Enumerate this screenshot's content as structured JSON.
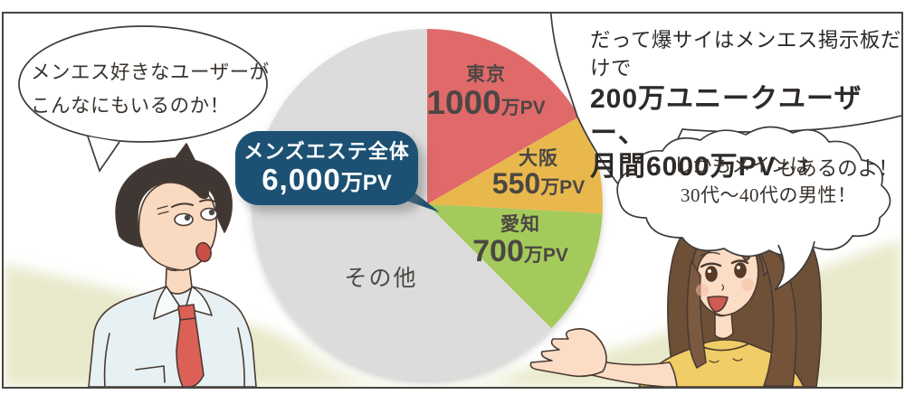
{
  "scene": {
    "left_bubble": {
      "lines": [
        "メンエス好きなユーザーが",
        "こんなにもいるのか！"
      ]
    },
    "top_right_bubble": {
      "line1": "だって爆サイはメンエス掲示板だけで",
      "line2": "200万ユニークユーザー、",
      "line3_bold": "月間6000万PV",
      "line3_rest": "もあるのよ！"
    },
    "bottom_right_bubble": {
      "lines": [
        "しかもメインは",
        "30代～40代の男性！"
      ]
    }
  },
  "chart_data": {
    "type": "pie",
    "title": "メンズエステ全体 6,000万PV",
    "direction": "clockwise",
    "start_angle_deg": 0,
    "unit": "万PV",
    "total": {
      "label": "メンズエステ全体",
      "value": 6000,
      "value_text": "6,000",
      "unit_text": "万PV"
    },
    "segments": [
      {
        "label": "東京",
        "value": 1000,
        "value_text": "1000",
        "unit_text": "万PV",
        "color": "#e0696b"
      },
      {
        "label": "大阪",
        "value": 550,
        "value_text": "550",
        "unit_text": "万PV",
        "color": "#e9b84d"
      },
      {
        "label": "愛知",
        "value": 700,
        "value_text": "700",
        "unit_text": "万PV",
        "color": "#a5ca5b"
      },
      {
        "label": "その他",
        "value": 3750,
        "value_text": "",
        "unit_text": "",
        "color": "#dcdcdd"
      }
    ]
  },
  "colors": {
    "badge_bg": "#1c5174",
    "background_green": "#e8e9cb",
    "outline": "#3b3b3b",
    "label_text": "#4b4743",
    "tokyo_red": "#e0696b",
    "osaka_yellow": "#e9b84d",
    "aichi_green": "#a5ca5b",
    "other_gray": "#dcdcdd"
  }
}
